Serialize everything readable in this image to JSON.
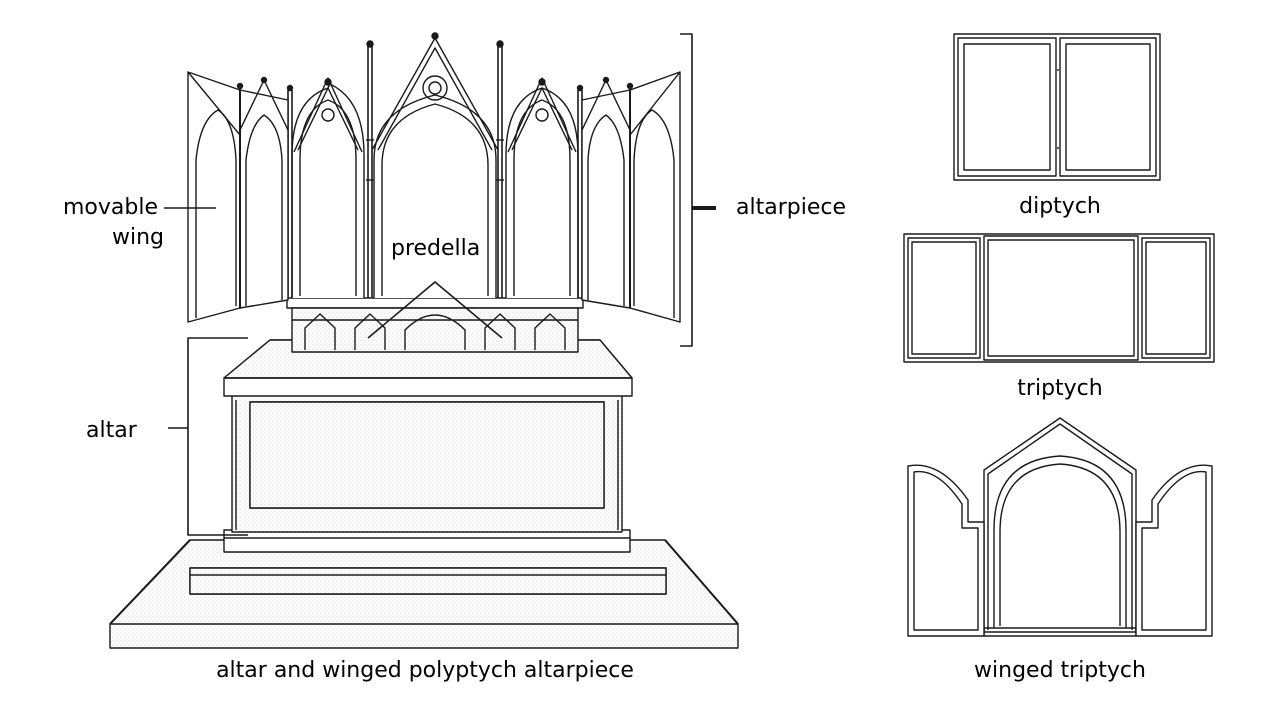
{
  "labels": {
    "movable_wing_line1": "movable",
    "movable_wing_line2": "wing",
    "predella": "predella",
    "altarpiece": "altarpiece",
    "altar": "altar",
    "main_caption": "altar and winged polyptych altarpiece",
    "diptych": "diptych",
    "triptych": "triptych",
    "winged_triptych": "winged triptych"
  },
  "colors": {
    "line": "#1a1a1a",
    "shade": "#cfcfcf",
    "background": "#ffffff"
  }
}
